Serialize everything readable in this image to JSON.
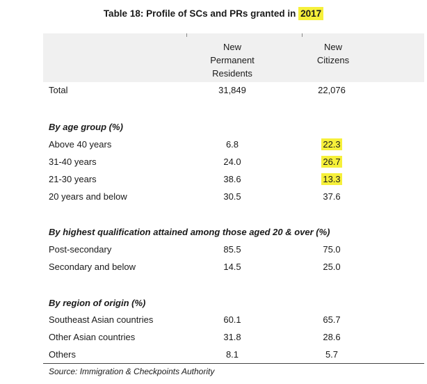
{
  "title": {
    "prefix": "Table 18: Profile of SCs and PRs granted in ",
    "year": "2017"
  },
  "columns": {
    "pr": [
      "New",
      "Permanent",
      "Residents"
    ],
    "citizens": [
      "New",
      "Citizens"
    ]
  },
  "total": {
    "label": "Total",
    "pr": "31,849",
    "citizens": "22,076"
  },
  "sections": {
    "age": {
      "heading": "By age group (%)",
      "rows": [
        {
          "label": "Above 40 years",
          "pr": "6.8",
          "citizens": "22.3"
        },
        {
          "label": "31-40 years",
          "pr": "24.0",
          "citizens": "26.7"
        },
        {
          "label": "21-30 years",
          "pr": "38.6",
          "citizens": "13.3"
        },
        {
          "label": "20 years and below",
          "pr": "30.5",
          "citizens": "37.6"
        }
      ]
    },
    "qualification": {
      "heading": "By highest qualification attained among those aged 20 & over (%)",
      "rows": [
        {
          "label": "Post-secondary",
          "pr": "85.5",
          "citizens": "75.0"
        },
        {
          "label": "Secondary and below",
          "pr": "14.5",
          "citizens": "25.0"
        }
      ]
    },
    "region": {
      "heading": "By region of origin (%)",
      "rows": [
        {
          "label": "Southeast Asian countries",
          "pr": "60.1",
          "citizens": "65.7"
        },
        {
          "label": "Other Asian countries",
          "pr": "31.8",
          "citizens": "28.6"
        },
        {
          "label": "Others",
          "pr": "8.1",
          "citizens": "5.7"
        }
      ]
    }
  },
  "source": "Source: Immigration & Checkpoints Authority",
  "highlight_color": "#f6f03a"
}
